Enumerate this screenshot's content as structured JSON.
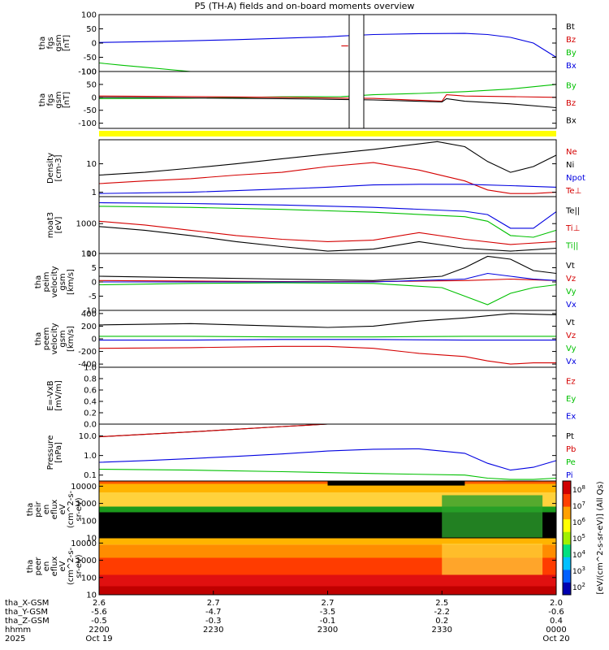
{
  "title": "P5 (TH-A) fields and on-board moments overview",
  "colors": {
    "black": "#000000",
    "red": "#d40000",
    "green": "#00c000",
    "blue": "#0000e0",
    "yellow": "#ffff00"
  },
  "chart_data": [
    {
      "id": "fgs_gsm",
      "type": "line",
      "ylabel": [
        "tha",
        "fgs",
        "gsm",
        "[nT]"
      ],
      "ylim": [
        -100,
        100
      ],
      "yticks": [
        "100",
        "50",
        "0",
        "-50",
        "-100"
      ],
      "legend": [
        {
          "text": "Bt",
          "color": "black"
        },
        {
          "text": "Bz",
          "color": "red"
        },
        {
          "text": "By",
          "color": "green"
        },
        {
          "text": "Bx",
          "color": "blue"
        }
      ],
      "series": [
        {
          "color": "blue",
          "x": [
            0,
            0.1,
            0.2,
            0.3,
            0.4,
            0.5,
            0.53,
            0.6,
            0.7,
            0.8,
            0.85,
            0.9,
            0.95,
            1.0
          ],
          "y": [
            2,
            5,
            8,
            12,
            17,
            22,
            25,
            30,
            33,
            34,
            30,
            20,
            0,
            -50
          ]
        },
        {
          "color": "green",
          "x": [
            0,
            0.05,
            0.1,
            0.2
          ],
          "y": [
            -70,
            -78,
            -85,
            -100
          ]
        },
        {
          "color": "red",
          "x": [
            0.53,
            0.545
          ],
          "y": [
            -10,
            -10
          ]
        }
      ]
    },
    {
      "id": "fgs_gse",
      "type": "line",
      "ylabel": [
        "tha",
        "fgs",
        "gsm",
        "[nT]"
      ],
      "ylim": [
        -120,
        100
      ],
      "yticks": [
        "100",
        "50",
        "0",
        "-50",
        "-100"
      ],
      "legend": [
        {
          "text": "By",
          "color": "green"
        },
        {
          "text": "Bz",
          "color": "red"
        },
        {
          "text": "Bx",
          "color": "black"
        }
      ],
      "series": [
        {
          "color": "green",
          "x": [
            0,
            0.2,
            0.4,
            0.53,
            0.6,
            0.7,
            0.8,
            0.9,
            1.0
          ],
          "y": [
            -5,
            -3,
            2,
            3,
            10,
            15,
            22,
            32,
            50
          ]
        },
        {
          "color": "red",
          "x": [
            0,
            0.2,
            0.4,
            0.53,
            0.6,
            0.75,
            0.76,
            0.8,
            0.9,
            1.0
          ],
          "y": [
            5,
            3,
            0,
            -3,
            -4,
            -15,
            10,
            5,
            3,
            0
          ]
        },
        {
          "color": "black",
          "x": [
            0,
            0.2,
            0.4,
            0.53,
            0.6,
            0.75,
            0.76,
            0.8,
            0.9,
            1.0
          ],
          "y": [
            0,
            -2,
            -5,
            -8,
            -10,
            -18,
            -5,
            -15,
            -25,
            -40
          ]
        }
      ]
    },
    {
      "id": "density",
      "type": "line",
      "log": true,
      "ylabel": [
        "Density",
        "[cm-3]"
      ],
      "ylim": [
        0.7,
        70
      ],
      "yticks": [
        "10",
        "1"
      ],
      "legend": [
        {
          "text": "Ne",
          "color": "red"
        },
        {
          "text": "Ni",
          "color": "black"
        },
        {
          "text": "Npot",
          "color": "blue"
        },
        {
          "text": "Te⊥",
          "color": "red"
        }
      ],
      "series": [
        {
          "color": "black",
          "x": [
            0,
            0.1,
            0.2,
            0.3,
            0.4,
            0.5,
            0.6,
            0.7,
            0.74,
            0.8,
            0.85,
            0.9,
            0.95,
            1.0
          ],
          "y": [
            4,
            5,
            7,
            10,
            15,
            22,
            32,
            50,
            60,
            40,
            12,
            5,
            8,
            20
          ]
        },
        {
          "color": "red",
          "x": [
            0,
            0.1,
            0.2,
            0.3,
            0.4,
            0.5,
            0.6,
            0.7,
            0.8,
            0.85,
            0.9,
            0.95,
            1.0
          ],
          "y": [
            2,
            2.5,
            3,
            4,
            5,
            8,
            11,
            6,
            2.5,
            1.2,
            0.9,
            0.9,
            1.0
          ]
        },
        {
          "color": "blue",
          "x": [
            0,
            0.2,
            0.4,
            0.5,
            0.6,
            0.7,
            0.8,
            0.9,
            1.0
          ],
          "y": [
            0.9,
            1.0,
            1.3,
            1.5,
            1.8,
            1.9,
            1.9,
            1.7,
            1.5
          ]
        }
      ]
    },
    {
      "id": "temperature",
      "type": "line",
      "log": true,
      "ylabel": [
        "moat3",
        "[eV]"
      ],
      "ylim": [
        100,
        8000
      ],
      "yticks": [
        "1000",
        "100"
      ],
      "legend": [
        {
          "text": "Te||",
          "color": "black"
        },
        {
          "text": "Ti⊥",
          "color": "red"
        },
        {
          "text": "Ti||",
          "color": "green"
        }
      ],
      "series": [
        {
          "color": "blue",
          "x": [
            0,
            0.2,
            0.4,
            0.6,
            0.8,
            0.85,
            0.9,
            0.95,
            1.0
          ],
          "y": [
            5000,
            4700,
            4200,
            3500,
            2600,
            2000,
            700,
            700,
            2500
          ]
        },
        {
          "color": "green",
          "x": [
            0,
            0.2,
            0.4,
            0.6,
            0.8,
            0.85,
            0.9,
            0.95,
            1.0
          ],
          "y": [
            3800,
            3500,
            3000,
            2400,
            1700,
            1200,
            400,
            350,
            600
          ]
        },
        {
          "color": "red",
          "x": [
            0,
            0.1,
            0.2,
            0.3,
            0.4,
            0.5,
            0.6,
            0.7,
            0.8,
            0.9,
            1.0
          ],
          "y": [
            1200,
            900,
            600,
            400,
            300,
            250,
            280,
            500,
            300,
            200,
            250
          ]
        },
        {
          "color": "black",
          "x": [
            0,
            0.1,
            0.2,
            0.3,
            0.4,
            0.5,
            0.6,
            0.7,
            0.8,
            0.9,
            1.0
          ],
          "y": [
            800,
            600,
            400,
            250,
            170,
            120,
            140,
            250,
            150,
            120,
            150
          ]
        }
      ]
    },
    {
      "id": "peim_velocity",
      "type": "line",
      "ylabel": [
        "tha",
        "peim",
        "velocity",
        "gsm",
        "[km/s]"
      ],
      "ylim": [
        -10,
        10
      ],
      "yticks": [
        "10",
        "5",
        "0",
        "-5",
        "-10"
      ],
      "legend": [
        {
          "text": "Vt",
          "color": "black"
        },
        {
          "text": "Vz",
          "color": "red"
        },
        {
          "text": "Vy",
          "color": "green"
        },
        {
          "text": "Vx",
          "color": "blue"
        }
      ],
      "series": [
        {
          "color": "black",
          "x": [
            0,
            0.2,
            0.4,
            0.6,
            0.75,
            0.8,
            0.85,
            0.9,
            0.95,
            1.0
          ],
          "y": [
            2,
            1.5,
            1,
            0.5,
            2,
            5,
            9,
            8,
            4,
            3
          ]
        },
        {
          "color": "red",
          "x": [
            0,
            0.2,
            0.4,
            0.6,
            0.8,
            0.9,
            1.0
          ],
          "y": [
            0.5,
            0.3,
            0.1,
            0.1,
            0.5,
            1,
            0.5
          ]
        },
        {
          "color": "blue",
          "x": [
            0,
            0.2,
            0.4,
            0.6,
            0.8,
            0.85,
            0.9,
            0.95,
            1.0
          ],
          "y": [
            0,
            0,
            0,
            0,
            1,
            3,
            2,
            1,
            0.5
          ]
        },
        {
          "color": "green",
          "x": [
            0,
            0.2,
            0.4,
            0.6,
            0.75,
            0.8,
            0.85,
            0.9,
            0.95,
            1.0
          ],
          "y": [
            -1,
            -0.5,
            -0.3,
            -0.5,
            -2,
            -5,
            -8,
            -4,
            -2,
            -1
          ]
        }
      ]
    },
    {
      "id": "peem_velocity",
      "type": "line",
      "ylabel": [
        "tha",
        "peem",
        "velocity",
        "gsm",
        "[km/s]"
      ],
      "ylim": [
        -450,
        450
      ],
      "yticks": [
        "400",
        "200",
        "0",
        "-200",
        "-400"
      ],
      "legend": [
        {
          "text": "Vt",
          "color": "black"
        },
        {
          "text": "Vz",
          "color": "red"
        },
        {
          "text": "Vy",
          "color": "green"
        },
        {
          "text": "Vx",
          "color": "blue"
        }
      ],
      "series": [
        {
          "color": "black",
          "x": [
            0,
            0.2,
            0.4,
            0.5,
            0.6,
            0.7,
            0.8,
            0.9,
            1.0
          ],
          "y": [
            220,
            240,
            200,
            180,
            200,
            280,
            330,
            400,
            380
          ]
        },
        {
          "color": "green",
          "x": [
            0,
            0.2,
            0.4,
            0.6,
            0.8,
            1.0
          ],
          "y": [
            40,
            40,
            30,
            30,
            40,
            40
          ]
        },
        {
          "color": "blue",
          "x": [
            0,
            0.2,
            0.4,
            0.6,
            0.8,
            1.0
          ],
          "y": [
            -20,
            -20,
            -10,
            -10,
            -20,
            -20
          ]
        },
        {
          "color": "red",
          "x": [
            0,
            0.2,
            0.4,
            0.5,
            0.6,
            0.7,
            0.8,
            0.85,
            0.9,
            0.95,
            1.0
          ],
          "y": [
            -150,
            -140,
            -120,
            -120,
            -150,
            -230,
            -280,
            -350,
            -400,
            -380,
            -380
          ]
        }
      ]
    },
    {
      "id": "efield",
      "type": "line",
      "ylabel": [
        "E=-VxB",
        "[mV/m]"
      ],
      "ylim": [
        0,
        1.0
      ],
      "yticks": [
        "1.0",
        "0.8",
        "0.6",
        "0.4",
        "0.2",
        "0.0"
      ],
      "legend": [
        {
          "text": "Ez",
          "color": "red"
        },
        {
          "text": "Ey",
          "color": "green"
        },
        {
          "text": "Ex",
          "color": "blue"
        }
      ],
      "series": []
    },
    {
      "id": "pressure",
      "type": "line",
      "log": true,
      "ylabel": [
        "Pressure",
        "[nPa]"
      ],
      "ylim": [
        0.05,
        40
      ],
      "yticks": [
        "10.0",
        "1.0",
        "0.1"
      ],
      "legend": [
        {
          "text": "Pt",
          "color": "black"
        },
        {
          "text": "Pb",
          "color": "red"
        },
        {
          "text": "Pe",
          "color": "green"
        },
        {
          "text": "Pi",
          "color": "blue"
        }
      ],
      "series": [
        {
          "color": "black",
          "x": [
            0,
            0.1,
            0.2,
            0.3,
            0.4,
            0.5
          ],
          "y": [
            9,
            12,
            16,
            22,
            30,
            40
          ]
        },
        {
          "color": "red",
          "x": [
            0,
            0.1,
            0.2,
            0.3,
            0.4,
            0.5
          ],
          "y": [
            9,
            12,
            16,
            22,
            30,
            40
          ]
        },
        {
          "color": "blue",
          "x": [
            0,
            0.1,
            0.2,
            0.3,
            0.4,
            0.5,
            0.6,
            0.7,
            0.8,
            0.85,
            0.9,
            0.95,
            1.0
          ],
          "y": [
            0.45,
            0.55,
            0.7,
            0.9,
            1.2,
            1.7,
            2.1,
            2.2,
            1.3,
            0.4,
            0.18,
            0.25,
            0.55
          ]
        },
        {
          "color": "green",
          "x": [
            0,
            0.2,
            0.4,
            0.6,
            0.8,
            0.85,
            0.9,
            0.95,
            1.0
          ],
          "y": [
            0.2,
            0.18,
            0.15,
            0.12,
            0.1,
            0.07,
            0.06,
            0.06,
            0.07
          ]
        }
      ]
    },
    {
      "id": "peir_spec",
      "type": "heatmap",
      "log": true,
      "ylabel": [
        "tha",
        "peir",
        "en",
        "eflux",
        "eV",
        "(cm^2-s-",
        "sr-eV)"
      ],
      "ylim": [
        10,
        20000
      ],
      "yticks": [
        "10000",
        "1000",
        "100",
        "10"
      ]
    },
    {
      "id": "peer_spec",
      "type": "heatmap",
      "log": true,
      "ylabel": [
        "tha",
        "peer",
        "en",
        "eflux",
        "eV",
        "(cm^2-s-",
        "sr-eV)"
      ],
      "ylim": [
        10,
        20000
      ],
      "yticks": [
        "10000",
        "1000",
        "100",
        "10"
      ]
    }
  ],
  "colorbar": {
    "ticks": [
      "10^8",
      "10^7",
      "10^6",
      "10^5",
      "10^4",
      "10^3",
      "10^2"
    ],
    "label": "[eV/(cm^2-s-sr-eV)] (All Qs)"
  },
  "x_axis": {
    "rows": [
      {
        "label": "tha_X-GSM",
        "values": [
          "2.6",
          "2.7",
          "2.7",
          "2.5",
          "2.0"
        ]
      },
      {
        "label": "tha_Y-GSM",
        "values": [
          "-5.6",
          "-4.7",
          "-3.5",
          "-2.2",
          "-0.6"
        ]
      },
      {
        "label": "tha_Z-GSM",
        "values": [
          "-0.5",
          "-0.3",
          "-0.1",
          "0.2",
          "0.4"
        ]
      },
      {
        "label": "hhmm",
        "values": [
          "2200",
          "2230",
          "2300",
          "2330",
          "0000"
        ]
      },
      {
        "label": "2025",
        "values": [
          "Oct 19",
          "",
          "",
          "",
          "Oct 20"
        ]
      }
    ]
  }
}
